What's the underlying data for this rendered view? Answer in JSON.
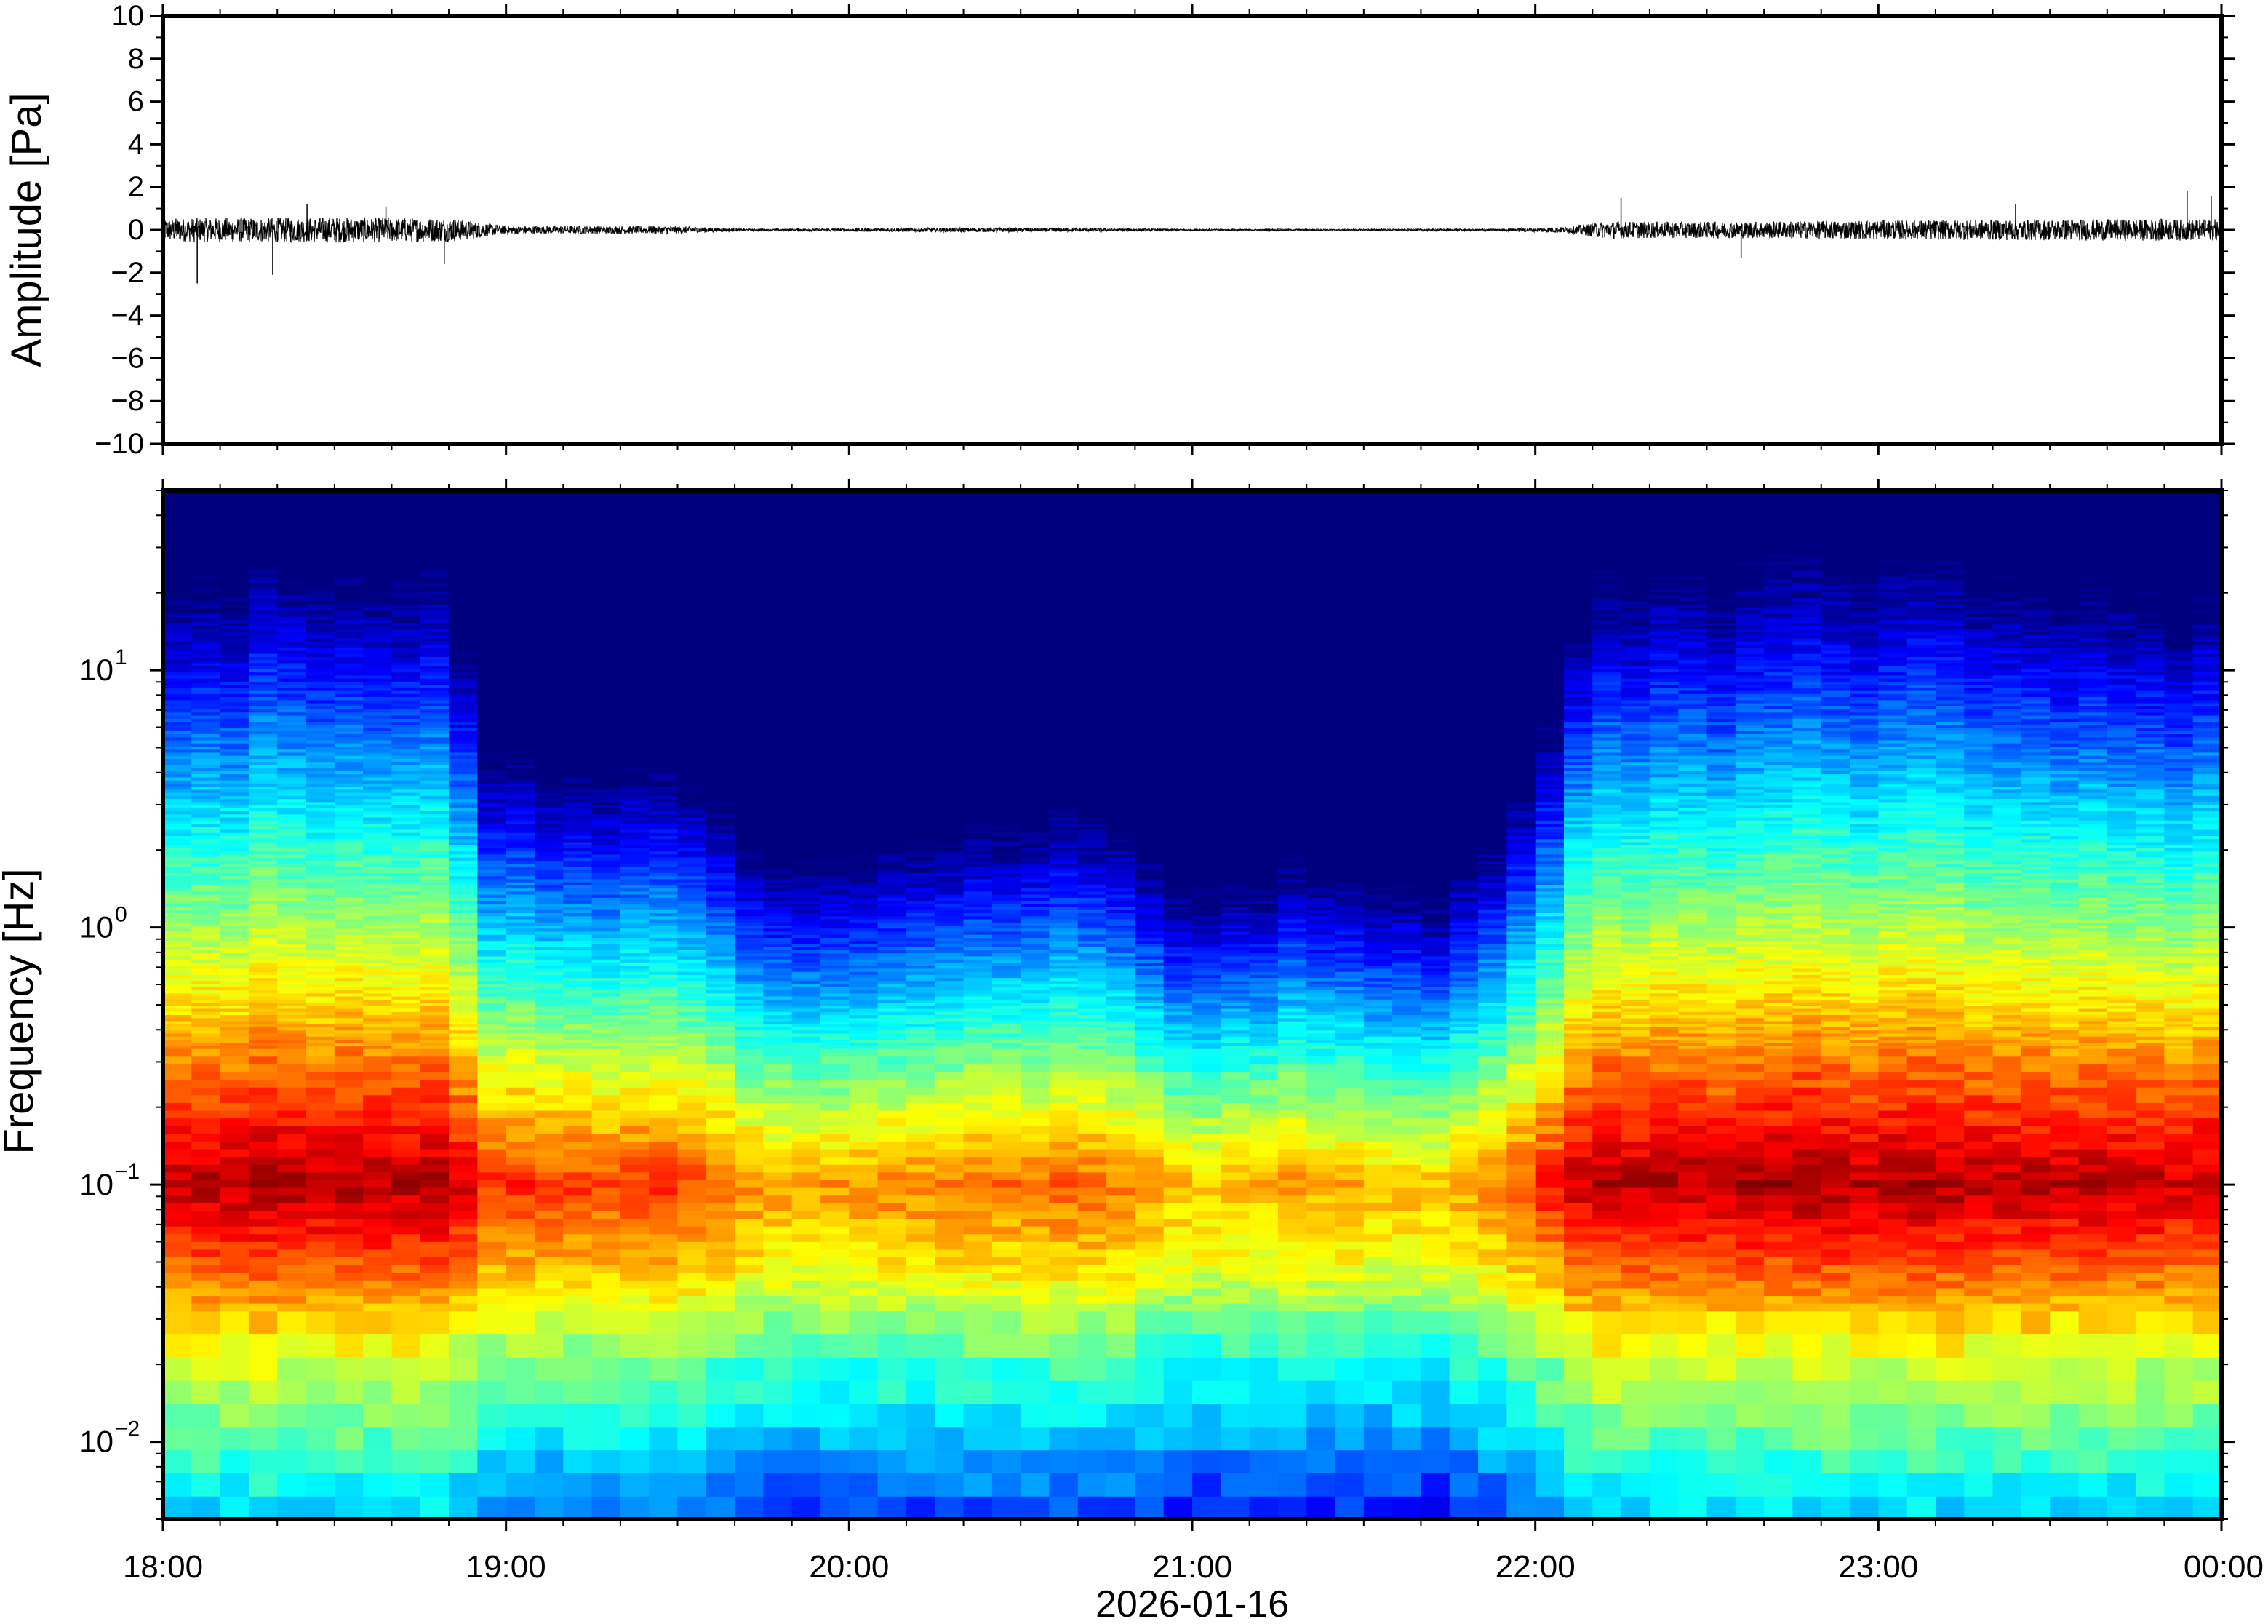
{
  "figure": {
    "date_label": "2026-01-16"
  },
  "chart_data": [
    {
      "type": "line",
      "name": "waveform",
      "ylabel": "Amplitude [Pa]",
      "xlabel": "",
      "ylim": [
        -10,
        10
      ],
      "yticks": [
        -10,
        -8,
        -6,
        -4,
        -2,
        0,
        2,
        4,
        6,
        8,
        10
      ],
      "ytick_labels": [
        "−10",
        "−8",
        "−6",
        "−4",
        "−2",
        "0",
        "2",
        "4",
        "6",
        "8",
        "10"
      ],
      "x_range_hours": [
        18,
        24
      ],
      "grid": false,
      "noise_envelope": {
        "time_hours": [
          18.0,
          18.5,
          18.85,
          19.0,
          19.5,
          19.7,
          20.3,
          20.7,
          21.0,
          21.5,
          21.9,
          22.1,
          22.2,
          22.5,
          23.0,
          23.5,
          24.0
        ],
        "amplitude_pa": [
          0.55,
          0.6,
          0.55,
          0.18,
          0.18,
          0.04,
          0.1,
          0.08,
          0.03,
          0.03,
          0.05,
          0.15,
          0.4,
          0.38,
          0.45,
          0.5,
          0.5
        ]
      },
      "spikes": [
        {
          "time_hours": 18.1,
          "value": -2.5
        },
        {
          "time_hours": 18.32,
          "value": -2.1
        },
        {
          "time_hours": 18.42,
          "value": 1.2
        },
        {
          "time_hours": 18.65,
          "value": 1.1
        },
        {
          "time_hours": 18.82,
          "value": -1.6
        },
        {
          "time_hours": 22.25,
          "value": 1.5
        },
        {
          "time_hours": 22.6,
          "value": -1.3
        },
        {
          "time_hours": 23.4,
          "value": 1.2
        },
        {
          "time_hours": 23.9,
          "value": 1.8
        },
        {
          "time_hours": 23.97,
          "value": 1.6
        }
      ]
    },
    {
      "type": "heatmap",
      "name": "spectrogram",
      "ylabel": "Frequency [Hz]",
      "xlabel": "2026-01-16",
      "yscale": "log",
      "ylim": [
        0.005,
        50
      ],
      "yticks": [
        0.01,
        0.1,
        1,
        10
      ],
      "ytick_labels": [
        {
          "base": "10",
          "exp": "−2"
        },
        {
          "base": "10",
          "exp": "−1"
        },
        {
          "base": "10",
          "exp": "0"
        },
        {
          "base": "10",
          "exp": "1"
        }
      ],
      "x_range_hours": [
        18,
        24
      ],
      "xtick_labels": [
        "18:00",
        "19:00",
        "20:00",
        "21:00",
        "22:00",
        "23:00",
        "00:00"
      ],
      "colormap": [
        "#00007f",
        "#0000ff",
        "#0080ff",
        "#00ffff",
        "#80ff80",
        "#ffff00",
        "#ff8000",
        "#ff0000",
        "#7f0000"
      ],
      "grid": false,
      "relative_power_profile": {
        "note_units": "normalized 0-1 color level",
        "time_hours": [
          18.0,
          18.85,
          18.95,
          19.6,
          19.75,
          20.3,
          20.7,
          21.0,
          21.3,
          21.6,
          21.75,
          21.95,
          22.15,
          22.5,
          23.0,
          23.5,
          24.0
        ],
        "activity": [
          0.9,
          0.88,
          0.55,
          0.45,
          0.22,
          0.28,
          0.4,
          0.05,
          0.2,
          0.1,
          0.1,
          0.4,
          0.88,
          0.86,
          0.92,
          0.88,
          0.85
        ]
      }
    }
  ]
}
